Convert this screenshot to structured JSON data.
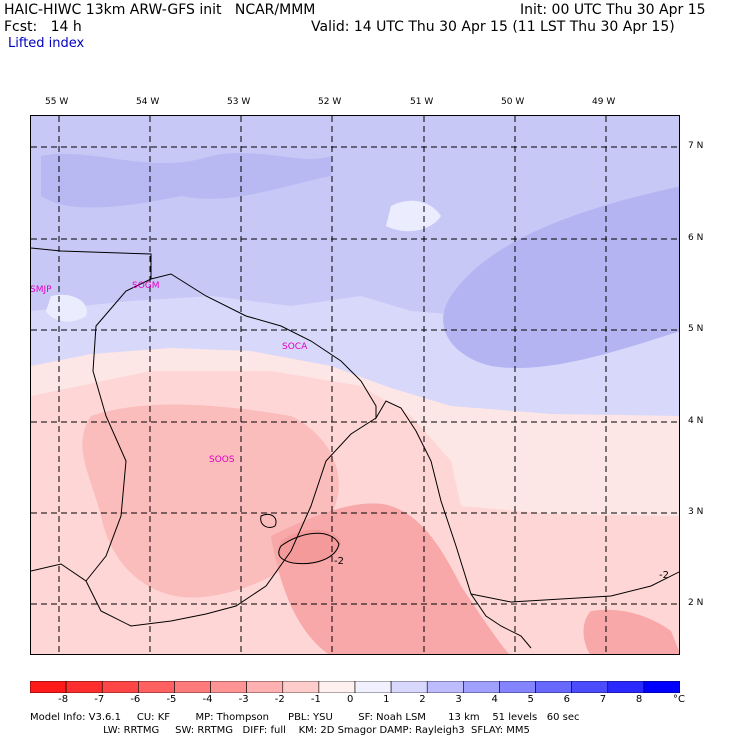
{
  "header": {
    "line1_left": "HAIC-HIWC 13km ARW-GFS init   NCAR/MMM",
    "line1_right": "Init: 00 UTC Thu 30 Apr 15",
    "line2_left": "Fcst:   14 h",
    "line2_right": "Valid: 14 UTC Thu 30 Apr 15 (11 LST Thu 30 Apr 15)",
    "field_name": "Lifted index"
  },
  "map": {
    "lon_labels": [
      "55 W",
      "54 W",
      "53 W",
      "52 W",
      "51 W",
      "50 W",
      "49 W"
    ],
    "lat_labels": [
      "7 N",
      "6 N",
      "5 N",
      "4 N",
      "3 N",
      "2 N"
    ],
    "stations": [
      "SMJP",
      "SOGM",
      "SOCA",
      "SOOS"
    ],
    "contour_labels": [
      "-2",
      "-2"
    ]
  },
  "colorbar": {
    "labels": [
      "-8",
      "-7",
      "-6",
      "-5",
      "-4",
      "-3",
      "-2",
      "-1",
      "0",
      "1",
      "2",
      "3",
      "4",
      "5",
      "6",
      "7",
      "8"
    ],
    "unit": "°C",
    "colors": [
      "#ff1a1a",
      "#ff2e2e",
      "#ff4646",
      "#ff6060",
      "#ff7a7a",
      "#ff9494",
      "#ffb0b0",
      "#ffcccc",
      "#fde6e6",
      "#e6e6ff",
      "#ccccff",
      "#b0b0ff",
      "#9494ff",
      "#7a7aff",
      "#6060ff",
      "#3030ff",
      "#0000ff"
    ]
  },
  "model_info": {
    "line1": "Model Info: V3.6.1     CU: KF        MP: Thompson      PBL: YSU        SF: Noah LSM       13 km    51 levels   60 sec",
    "line2": "                       LW: RRTMG     SW: RRTMG   DIFF: full    KM: 2D Smagor DAMP: Rayleigh3  SFLAY: MM5"
  }
}
